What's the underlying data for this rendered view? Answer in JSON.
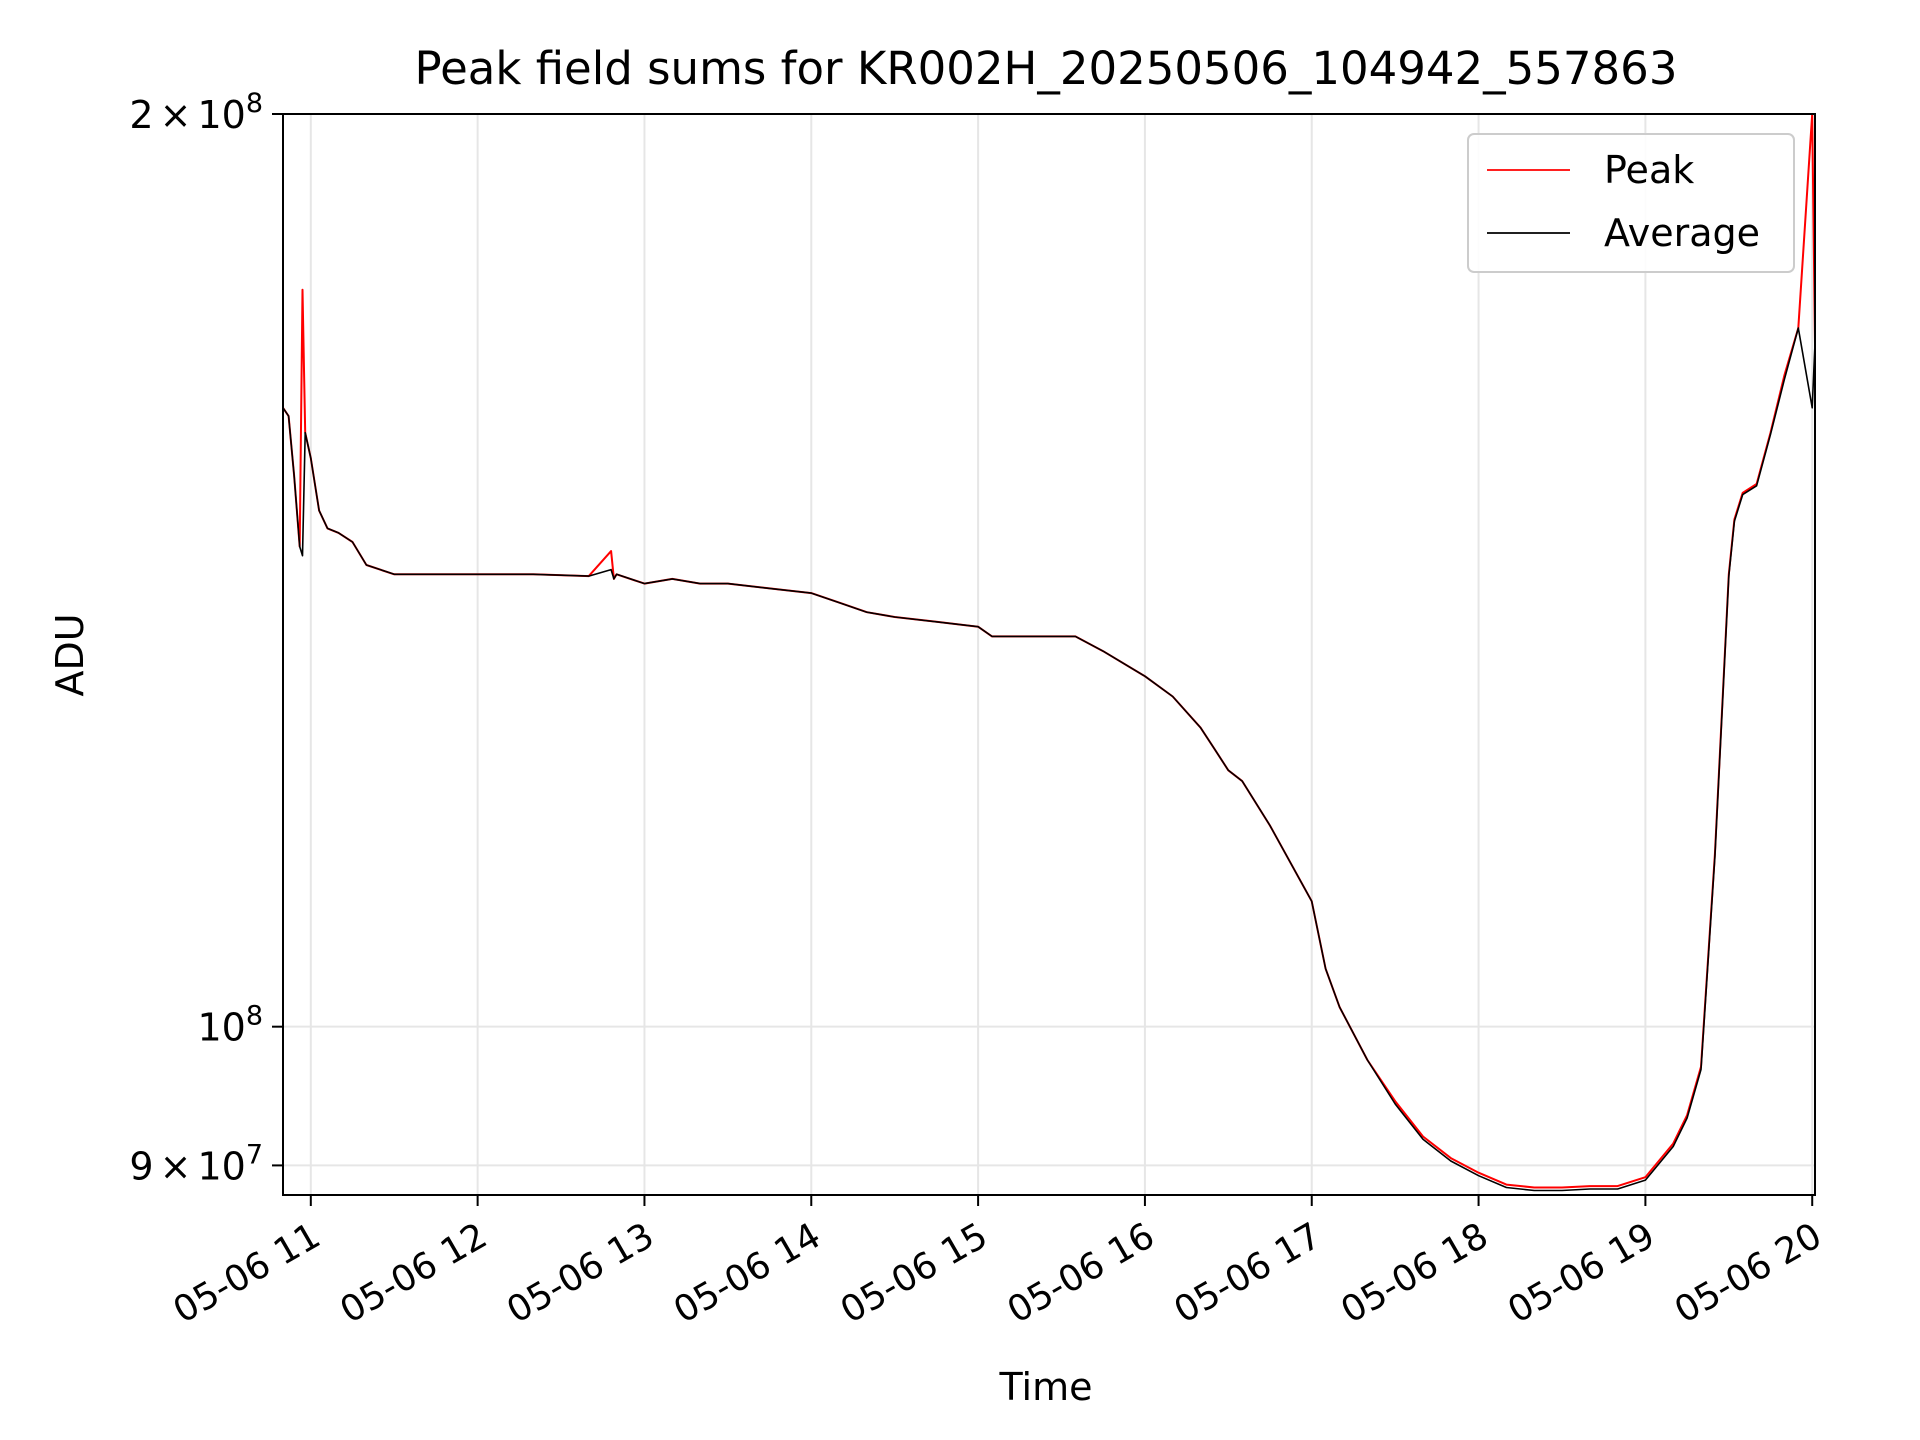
{
  "chart_data": {
    "type": "line",
    "title": "Peak field sums for KR002H_20250506_104942_557863",
    "xlabel": "Time",
    "ylabel": "ADU",
    "yscale": "log",
    "grid": true,
    "legend_position": "upper-right",
    "xlim": [
      "05-06 10:50",
      "05-06 20:01"
    ],
    "ylim": [
      88000000,
      200000000
    ],
    "x_ticks": [
      "05-06 11",
      "05-06 12",
      "05-06 13",
      "05-06 14",
      "05-06 15",
      "05-06 16",
      "05-06 17",
      "05-06 18",
      "05-06 19",
      "05-06 20"
    ],
    "y_ticks": [
      {
        "value": 200000000,
        "mantissa": "2",
        "times": "×",
        "base": "10",
        "exp": "8"
      },
      {
        "value": 100000000,
        "mantissa": "",
        "times": "",
        "base": "10",
        "exp": "8"
      },
      {
        "value": 90000000,
        "mantissa": "9",
        "times": "×",
        "base": "10",
        "exp": "7"
      }
    ],
    "x": [
      "05-06 10:50",
      "05-06 10:52",
      "05-06 10:54",
      "05-06 10:56",
      "05-06 10:57",
      "05-06 10:58",
      "05-06 11:00",
      "05-06 11:03",
      "05-06 11:06",
      "05-06 11:10",
      "05-06 11:15",
      "05-06 11:20",
      "05-06 11:30",
      "05-06 11:45",
      "05-06 12:00",
      "05-06 12:20",
      "05-06 12:40",
      "05-06 12:48",
      "05-06 12:49",
      "05-06 12:50",
      "05-06 13:00",
      "05-06 13:10",
      "05-06 13:20",
      "05-06 13:30",
      "05-06 13:45",
      "05-06 14:00",
      "05-06 14:10",
      "05-06 14:20",
      "05-06 14:30",
      "05-06 14:45",
      "05-06 15:00",
      "05-06 15:05",
      "05-06 15:15",
      "05-06 15:30",
      "05-06 15:35",
      "05-06 15:45",
      "05-06 16:00",
      "05-06 16:10",
      "05-06 16:20",
      "05-06 16:25",
      "05-06 16:30",
      "05-06 16:35",
      "05-06 16:45",
      "05-06 17:00",
      "05-06 17:05",
      "05-06 17:10",
      "05-06 17:20",
      "05-06 17:30",
      "05-06 17:40",
      "05-06 17:50",
      "05-06 18:00",
      "05-06 18:10",
      "05-06 18:20",
      "05-06 18:30",
      "05-06 18:40",
      "05-06 18:50",
      "05-06 19:00",
      "05-06 19:10",
      "05-06 19:15",
      "05-06 19:20",
      "05-06 19:25",
      "05-06 19:30",
      "05-06 19:32",
      "05-06 19:35",
      "05-06 19:40",
      "05-06 19:45",
      "05-06 19:50",
      "05-06 19:55",
      "05-06 20:00",
      "05-06 20:01"
    ],
    "series": [
      {
        "name": "Peak",
        "color": "#ff0000",
        "values": [
          160000000,
          159000000,
          152000000,
          144000000,
          175000000,
          157000000,
          154000000,
          148000000,
          146000000,
          145500000,
          144500000,
          142000000,
          141000000,
          141000000,
          141000000,
          141000000,
          140800000,
          143500000,
          140500000,
          141000000,
          140000000,
          140500000,
          140000000,
          140000000,
          139500000,
          139000000,
          138000000,
          137000000,
          136500000,
          136000000,
          135500000,
          134500000,
          134500000,
          134500000,
          134500000,
          133000000,
          130500000,
          128500000,
          125500000,
          123500000,
          121500000,
          120500000,
          116500000,
          110000000,
          104500000,
          101500000,
          97500000,
          94500000,
          92000000,
          90500000,
          89500000,
          88700000,
          88500000,
          88500000,
          88600000,
          88600000,
          89200000,
          91500000,
          93500000,
          97000000,
          114000000,
          141000000,
          147000000,
          150000000,
          151000000,
          157000000,
          164000000,
          170000000,
          200000000,
          168000000
        ]
      },
      {
        "name": "Average",
        "color": "#000000",
        "values": [
          160000000,
          159000000,
          152000000,
          144000000,
          143000000,
          157000000,
          154000000,
          148000000,
          146000000,
          145500000,
          144500000,
          142000000,
          141000000,
          141000000,
          141000000,
          141000000,
          140800000,
          141500000,
          140500000,
          141000000,
          140000000,
          140500000,
          140000000,
          140000000,
          139500000,
          139000000,
          138000000,
          137000000,
          136500000,
          136000000,
          135500000,
          134500000,
          134500000,
          134500000,
          134500000,
          133000000,
          130500000,
          128500000,
          125500000,
          123500000,
          121500000,
          120500000,
          116500000,
          110000000,
          104500000,
          101500000,
          97500000,
          94300000,
          91800000,
          90300000,
          89300000,
          88500000,
          88300000,
          88300000,
          88400000,
          88400000,
          89000000,
          91300000,
          93300000,
          96800000,
          113800000,
          140800000,
          146800000,
          149800000,
          150800000,
          156800000,
          163500000,
          170000000,
          160000000,
          168000000
        ]
      }
    ]
  }
}
